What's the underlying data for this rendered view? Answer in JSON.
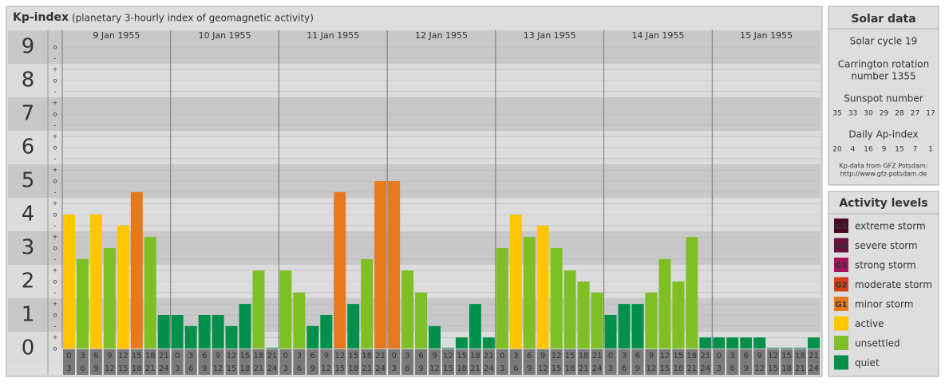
{
  "chart_data": {
    "type": "bar",
    "title": "Kp-index",
    "subtitle": "(planetary 3-hourly index of geomagnetic activity)",
    "days": [
      "9 Jan 1955",
      "10 Jan 1955",
      "11 Jan 1955",
      "12 Jan 1955",
      "13 Jan 1955",
      "14 Jan 1955",
      "15 Jan 1955"
    ],
    "hours": [
      [
        0,
        3
      ],
      [
        3,
        6
      ],
      [
        6,
        9
      ],
      [
        9,
        12
      ],
      [
        12,
        15
      ],
      [
        15,
        18
      ],
      [
        18,
        21
      ],
      [
        21,
        24
      ]
    ],
    "values": [
      4,
      2.67,
      4,
      3,
      3.67,
      4.67,
      3.33,
      1,
      1,
      0.67,
      1,
      1,
      0.67,
      1.33,
      2.33,
      0,
      2.33,
      1.67,
      0.67,
      1,
      4.67,
      1.33,
      2.67,
      5,
      5,
      2.33,
      1.67,
      0.67,
      0,
      0.33,
      1.33,
      0.33,
      3,
      4,
      3.33,
      3.67,
      3,
      2.33,
      2,
      1.67,
      1,
      1.33,
      1.33,
      1.67,
      2.67,
      2,
      3.33,
      0.33,
      0.33,
      0.33,
      0.33,
      0.33,
      0,
      0,
      0,
      0.33
    ],
    "colors": [
      "#ffc600",
      "#7fbf26",
      "#ffc600",
      "#7fbf26",
      "#ffc600",
      "#e8781c",
      "#7fbf26",
      "#00904a",
      "#00904a",
      "#00904a",
      "#00904a",
      "#00904a",
      "#00904a",
      "#00904a",
      "#7fbf26",
      "#00904a",
      "#7fbf26",
      "#7fbf26",
      "#00904a",
      "#00904a",
      "#e8781c",
      "#00904a",
      "#7fbf26",
      "#e8781c",
      "#e8781c",
      "#7fbf26",
      "#7fbf26",
      "#00904a",
      "#00904a",
      "#00904a",
      "#00904a",
      "#00904a",
      "#7fbf26",
      "#ffc600",
      "#7fbf26",
      "#ffc600",
      "#7fbf26",
      "#7fbf26",
      "#7fbf26",
      "#7fbf26",
      "#00904a",
      "#00904a",
      "#00904a",
      "#7fbf26",
      "#7fbf26",
      "#7fbf26",
      "#7fbf26",
      "#00904a",
      "#00904a",
      "#00904a",
      "#00904a",
      "#00904a",
      "#00904a",
      "#00904a",
      "#00904a",
      "#00904a"
    ],
    "ylim": [
      0,
      9.5
    ],
    "yticks": [
      0,
      1,
      2,
      3,
      4,
      5,
      6,
      7,
      8,
      9
    ],
    "minor_yticks": [
      {
        "value": 0,
        "label": "o"
      },
      {
        "value": 0.33,
        "label": "+"
      },
      {
        "value": 0.67,
        "label": "-"
      },
      {
        "value": 1,
        "label": "o"
      },
      {
        "value": 1.33,
        "label": "+"
      },
      {
        "value": 1.67,
        "label": "-"
      },
      {
        "value": 2,
        "label": "o"
      },
      {
        "value": 2.33,
        "label": "+"
      },
      {
        "value": 2.67,
        "label": "-"
      },
      {
        "value": 3,
        "label": "o"
      },
      {
        "value": 3.33,
        "label": "+"
      },
      {
        "value": 3.67,
        "label": "-"
      },
      {
        "value": 4,
        "label": "o"
      },
      {
        "value": 4.33,
        "label": "+"
      },
      {
        "value": 4.67,
        "label": "-"
      },
      {
        "value": 5,
        "label": "o"
      },
      {
        "value": 5.33,
        "label": "+"
      },
      {
        "value": 5.67,
        "label": "-"
      },
      {
        "value": 6,
        "label": "o"
      },
      {
        "value": 6.33,
        "label": "+"
      },
      {
        "value": 6.67,
        "label": "-"
      },
      {
        "value": 7,
        "label": "o"
      },
      {
        "value": 7.33,
        "label": "+"
      },
      {
        "value": 7.67,
        "label": "-"
      },
      {
        "value": 8,
        "label": "o"
      },
      {
        "value": 8.33,
        "label": "+"
      },
      {
        "value": 8.67,
        "label": "-"
      },
      {
        "value": 9,
        "label": "o"
      }
    ],
    "grid": true
  },
  "solar_data": {
    "title": "Solar data",
    "cycle": "Solar cycle 19",
    "carrington": [
      "Carrington rotation",
      "number 1355"
    ],
    "sunspot_title": "Sunspot number",
    "sunspot": [
      35,
      33,
      30,
      29,
      28,
      27,
      17
    ],
    "ap_title": "Daily Ap-index",
    "ap": [
      20,
      4,
      16,
      9,
      15,
      7,
      1
    ],
    "source": "Kp-data from GFZ Potsdam:",
    "url": "http://www.gfz-potsdam.de"
  },
  "activity_levels": {
    "title": "Activity levels",
    "levels": [
      {
        "code": "G5",
        "name": "extreme storm",
        "color": "#4a0a26"
      },
      {
        "code": "G4",
        "name": "severe storm",
        "color": "#6e1040"
      },
      {
        "code": "G3",
        "name": "strong storm",
        "color": "#a8105a"
      },
      {
        "code": "G2",
        "name": "moderate storm",
        "color": "#d8401a"
      },
      {
        "code": "G1",
        "name": "minor storm",
        "color": "#e8781c"
      },
      {
        "name": "active",
        "color": "#ffc600"
      },
      {
        "name": "unsettled",
        "color": "#7fbf26"
      },
      {
        "name": "quiet",
        "color": "#00904a"
      }
    ]
  }
}
